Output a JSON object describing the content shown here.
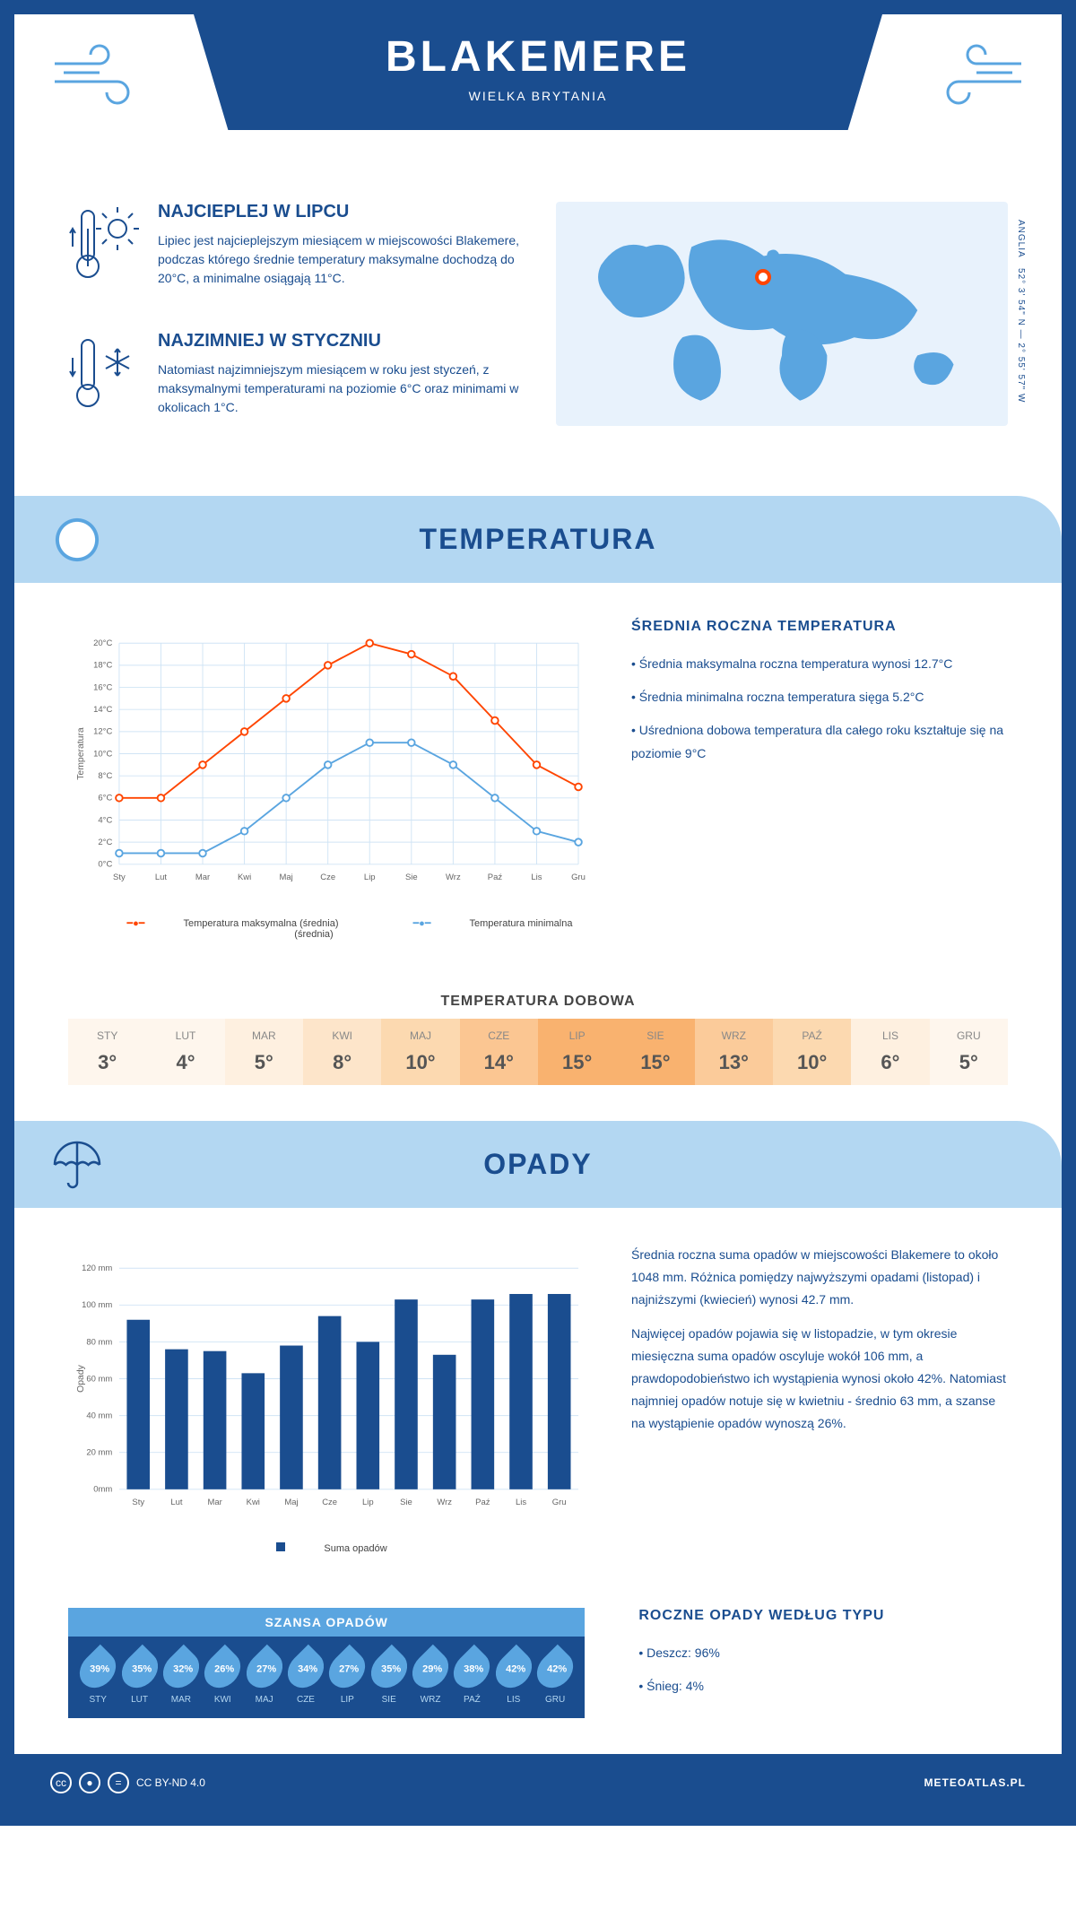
{
  "header": {
    "title": "BLAKEMERE",
    "country": "WIELKA BRYTANIA",
    "coords": "52° 3' 54\" N — 2° 55' 57\" W",
    "region": "ANGLIA"
  },
  "facts": {
    "hot": {
      "title": "NAJCIEPLEJ W LIPCU",
      "text": "Lipiec jest najcieplejszym miesiącem w miejscowości Blakemere, podczas którego średnie temperatury maksymalne dochodzą do 20°C, a minimalne osiągają 11°C."
    },
    "cold": {
      "title": "NAJZIMNIEJ W STYCZNIU",
      "text": "Natomiast najzimniejszym miesiącem w roku jest styczeń, z maksymalnymi temperaturami na poziomie 6°C oraz minimami w okolicach 1°C."
    }
  },
  "months_short": [
    "Sty",
    "Lut",
    "Mar",
    "Kwi",
    "Maj",
    "Cze",
    "Lip",
    "Sie",
    "Wrz",
    "Paź",
    "Lis",
    "Gru"
  ],
  "months_upper": [
    "STY",
    "LUT",
    "MAR",
    "KWI",
    "MAJ",
    "CZE",
    "LIP",
    "SIE",
    "WRZ",
    "PAŹ",
    "LIS",
    "GRU"
  ],
  "temperature": {
    "section_title": "TEMPERATURA",
    "side_title": "ŚREDNIA ROCZNA TEMPERATURA",
    "bullets": [
      "Średnia maksymalna roczna temperatura wynosi 12.7°C",
      "Średnia minimalna roczna temperatura sięga 5.2°C",
      "Uśredniona dobowa temperatura dla całego roku kształtuje się na poziomie 9°C"
    ],
    "chart": {
      "type": "line",
      "y_axis_label": "Temperatura",
      "y_ticks": [
        "0°C",
        "2°C",
        "4°C",
        "6°C",
        "8°C",
        "10°C",
        "12°C",
        "14°C",
        "16°C",
        "18°C",
        "20°C"
      ],
      "ylim": [
        0,
        20
      ],
      "max_series": {
        "label": "Temperatura maksymalna (średnia)",
        "color": "#ff4500",
        "values": [
          6,
          6,
          9,
          12,
          15,
          18,
          20,
          19,
          17,
          13,
          9,
          7
        ]
      },
      "min_series": {
        "label": "Temperatura minimalna (średnia)",
        "color": "#5aa5e0",
        "values": [
          1,
          1,
          1,
          3,
          6,
          9,
          11,
          11,
          9,
          6,
          3,
          2
        ]
      },
      "grid_color": "#d0e4f5",
      "background": "#ffffff",
      "marker": "circle",
      "marker_size": 4,
      "line_width": 2
    },
    "daily": {
      "title": "TEMPERATURA DOBOWA",
      "values": [
        "3°",
        "4°",
        "5°",
        "8°",
        "10°",
        "14°",
        "15°",
        "15°",
        "13°",
        "10°",
        "6°",
        "5°"
      ],
      "bg_colors": [
        "#fef6ed",
        "#fef6ed",
        "#fef0e0",
        "#fde5ca",
        "#fcd9b0",
        "#fbc692",
        "#f9b26f",
        "#f9b26f",
        "#fbcb9a",
        "#fcd9b0",
        "#fef0e0",
        "#fef6ed"
      ]
    }
  },
  "precipitation": {
    "section_title": "OPADY",
    "para1": "Średnia roczna suma opadów w miejscowości Blakemere to około 1048 mm. Różnica pomiędzy najwyższymi opadami (listopad) i najniższymi (kwiecień) wynosi 42.7 mm.",
    "para2": "Najwięcej opadów pojawia się w listopadzie, w tym okresie miesięczna suma opadów oscyluje wokół 106 mm, a prawdopodobieństwo ich wystąpienia wynosi około 42%. Natomiast najmniej opadów notuje się w kwietniu - średnio 63 mm, a szanse na wystąpienie opadów wynoszą 26%.",
    "chart": {
      "type": "bar",
      "y_axis_label": "Opady",
      "y_ticks": [
        "0mm",
        "20 mm",
        "40 mm",
        "60 mm",
        "80 mm",
        "100 mm",
        "120 mm"
      ],
      "ylim": [
        0,
        120
      ],
      "values": [
        92,
        76,
        75,
        63,
        78,
        94,
        80,
        103,
        73,
        103,
        106,
        106
      ],
      "bar_color": "#1a4d8f",
      "legend_label": "Suma opadów",
      "grid_color": "#d0e4f5",
      "bar_width": 0.6
    },
    "chance": {
      "title": "SZANSA OPADÓW",
      "values": [
        "39%",
        "35%",
        "32%",
        "26%",
        "27%",
        "34%",
        "27%",
        "35%",
        "29%",
        "38%",
        "42%",
        "42%"
      ],
      "drop_color": "#5aa5e0",
      "bg_color": "#1a4d8f"
    },
    "by_type": {
      "title": "ROCZNE OPADY WEDŁUG TYPU",
      "items": [
        "Deszcz: 96%",
        "Śnieg: 4%"
      ]
    }
  },
  "footer": {
    "license": "CC BY-ND 4.0",
    "site": "METEOATLAS.PL"
  }
}
